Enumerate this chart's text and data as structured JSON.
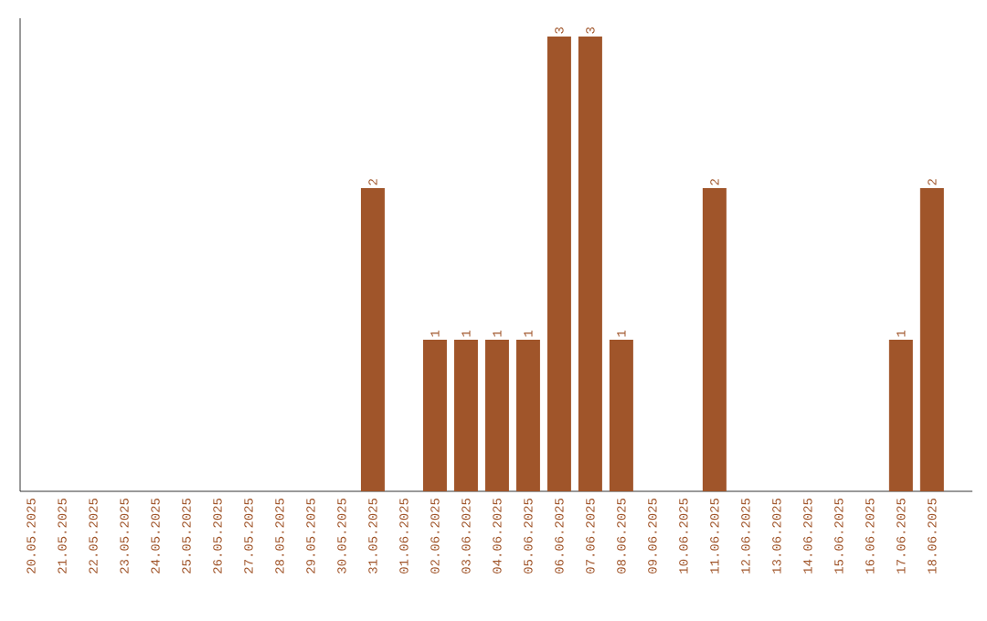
{
  "chart_data": {
    "type": "bar",
    "color": "#a0552a",
    "categories": [
      "20.05.2025",
      "21.05.2025",
      "22.05.2025",
      "23.05.2025",
      "24.05.2025",
      "25.05.2025",
      "26.05.2025",
      "27.05.2025",
      "28.05.2025",
      "29.05.2025",
      "30.05.2025",
      "31.05.2025",
      "01.06.2025",
      "02.06.2025",
      "03.06.2025",
      "04.06.2025",
      "05.06.2025",
      "06.06.2025",
      "07.06.2025",
      "08.06.2025",
      "09.06.2025",
      "10.06.2025",
      "11.06.2025",
      "12.06.2025",
      "13.06.2025",
      "14.06.2025",
      "15.06.2025",
      "16.06.2025",
      "17.06.2025",
      "18.06.2025"
    ],
    "values": [
      0,
      0,
      0,
      0,
      0,
      0,
      0,
      0,
      0,
      0,
      0,
      2,
      0,
      1,
      1,
      1,
      1,
      3,
      3,
      1,
      0,
      0,
      2,
      0,
      0,
      0,
      0,
      0,
      1,
      2
    ],
    "value_labels": [
      null,
      null,
      null,
      null,
      null,
      null,
      null,
      null,
      null,
      null,
      null,
      "2",
      null,
      "1",
      "1",
      "1",
      "1",
      "3",
      "3",
      "1",
      null,
      null,
      "2",
      null,
      null,
      null,
      null,
      null,
      "1",
      "2"
    ]
  }
}
